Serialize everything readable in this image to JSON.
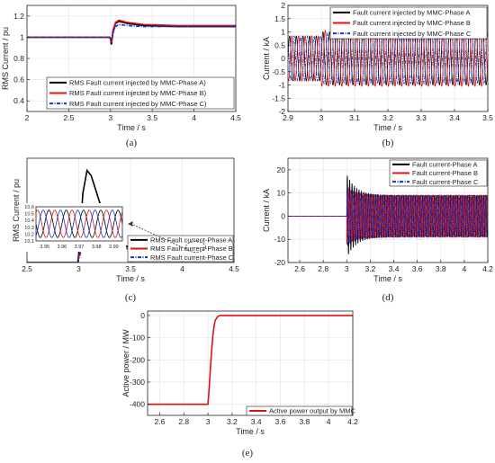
{
  "chart_data": [
    {
      "id": "a",
      "type": "line",
      "caption": "(a)",
      "xlabel": "Time / s",
      "ylabel": "RMS Current / pu",
      "xlim": [
        2,
        4.5
      ],
      "ylim": [
        0.3,
        1.3
      ],
      "xticks": [
        2,
        2.5,
        3,
        3.5,
        4,
        4.5
      ],
      "yticks": [
        0.4,
        0.6,
        0.8,
        1,
        1.2
      ],
      "grid": true,
      "legend_position": "bottom-right",
      "series": [
        {
          "name": "RMS Fault current injected by MMC-Phase A)",
          "color": "#000000",
          "style": "solid",
          "points": [
            [
              2,
              1.0
            ],
            [
              2.99,
              1.0
            ],
            [
              3.0,
              0.98
            ],
            [
              3.01,
              0.93
            ],
            [
              3.03,
              1.05
            ],
            [
              3.06,
              1.13
            ],
            [
              3.1,
              1.15
            ],
            [
              3.2,
              1.13
            ],
            [
              3.4,
              1.11
            ],
            [
              3.8,
              1.1
            ],
            [
              4.5,
              1.1
            ]
          ]
        },
        {
          "name": "RMS Fault current injected by MMC-Phase B)",
          "color": "#e01010",
          "style": "solid",
          "points": [
            [
              2,
              1.0
            ],
            [
              2.99,
              1.0
            ],
            [
              3.0,
              0.99
            ],
            [
              3.01,
              0.95
            ],
            [
              3.03,
              1.07
            ],
            [
              3.06,
              1.14
            ],
            [
              3.1,
              1.16
            ],
            [
              3.2,
              1.14
            ],
            [
              3.4,
              1.12
            ],
            [
              3.8,
              1.11
            ],
            [
              4.5,
              1.11
            ]
          ]
        },
        {
          "name": "RMS Fault current injected by MMC-Phase C)",
          "color": "#1030d0",
          "style": "dashdot",
          "points": [
            [
              2,
              1.0
            ],
            [
              2.99,
              1.0
            ],
            [
              3.0,
              1.0
            ],
            [
              3.01,
              0.97
            ],
            [
              3.03,
              1.04
            ],
            [
              3.06,
              1.1
            ],
            [
              3.1,
              1.12
            ],
            [
              3.2,
              1.11
            ],
            [
              3.4,
              1.1
            ],
            [
              3.8,
              1.1
            ],
            [
              4.5,
              1.1
            ]
          ]
        }
      ]
    },
    {
      "id": "b",
      "type": "line",
      "caption": "(b)",
      "xlabel": "Time / s",
      "ylabel": "Current / kA",
      "xlim": [
        2.9,
        3.5
      ],
      "ylim": [
        -2,
        2
      ],
      "xticks": [
        2.9,
        3,
        3.1,
        3.2,
        3.3,
        3.4,
        3.5
      ],
      "yticks": [
        -2,
        -1.5,
        -1,
        -0.5,
        0,
        0.5,
        1,
        1.5,
        2
      ],
      "grid": true,
      "legend_position": "top-right",
      "frequency_hz": 50,
      "fault_time": 3.0,
      "series": [
        {
          "name": "Fault current injected by MMC-Phase A",
          "color": "#000000",
          "style": "solid",
          "pre_fault_amplitude": 0.85,
          "post_fault_amplitude": 1.0,
          "phase_deg": 0
        },
        {
          "name": "Fault current injected by MMC-Phase B",
          "color": "#e01010",
          "style": "solid",
          "pre_fault_amplitude": 0.85,
          "post_fault_amplitude": 1.05,
          "phase_deg": -120
        },
        {
          "name": "Fault current injected by MMC-Phase C",
          "color": "#1030d0",
          "style": "dashdot",
          "pre_fault_amplitude": 0.85,
          "post_fault_amplitude": 0.95,
          "phase_deg": 120
        }
      ]
    },
    {
      "id": "c",
      "type": "line",
      "caption": "(c)",
      "xlabel": "Time / s",
      "ylabel": "RMS Current / pu",
      "xlim": [
        2.5,
        4.5
      ],
      "ylim": [
        10,
        16
      ],
      "xticks": [
        2.5,
        3,
        3.5,
        4,
        4.5
      ],
      "xtick_labels": [
        "2.5",
        "3",
        "3.5",
        "4",
        "4.5"
      ],
      "yticks": [],
      "grid": true,
      "legend_position": "bottom-right",
      "series": [
        {
          "name": "RMS Fault current-Phase A",
          "color": "#000000",
          "style": "solid",
          "points": [
            [
              2.5,
              10.0
            ],
            [
              2.99,
              10.0
            ],
            [
              3.0,
              10.5
            ],
            [
              3.04,
              14.0
            ],
            [
              3.08,
              15.3
            ],
            [
              3.12,
              15.0
            ],
            [
              3.2,
              13.5
            ],
            [
              3.3,
              12.0
            ],
            [
              3.4,
              11.1
            ],
            [
              3.55,
              10.7
            ],
            [
              3.8,
              10.55
            ],
            [
              4.5,
              10.5
            ]
          ]
        },
        {
          "name": "RMS Fault current-Phase B",
          "color": "#e01010",
          "style": "solid",
          "points": [
            [
              2.5,
              10.0
            ],
            [
              2.99,
              10.0
            ],
            [
              3.0,
              10.3
            ],
            [
              3.05,
              11.6
            ],
            [
              3.1,
              12.0
            ],
            [
              3.2,
              11.6
            ],
            [
              3.35,
              11.0
            ],
            [
              3.6,
              10.6
            ],
            [
              4.5,
              10.5
            ]
          ]
        },
        {
          "name": "RMS Fault current-Phase C",
          "color": "#1030d0",
          "style": "dashdot",
          "points": [
            [
              2.5,
              10.0
            ],
            [
              2.99,
              10.0
            ],
            [
              3.0,
              10.2
            ],
            [
              3.05,
              11.2
            ],
            [
              3.1,
              11.6
            ],
            [
              3.2,
              11.3
            ],
            [
              3.35,
              10.9
            ],
            [
              3.6,
              10.6
            ],
            [
              4.5,
              10.5
            ]
          ]
        }
      ],
      "inset": {
        "xlim": [
          3.945,
          3.995
        ],
        "ylim": [
          10.1,
          10.6
        ],
        "xticks": [
          3.95,
          3.96,
          3.97,
          3.98,
          3.99
        ],
        "yticks": [
          10.1,
          10.2,
          10.3,
          10.4,
          10.5,
          10.6
        ],
        "frequency_hz": 100,
        "center": 10.35,
        "amplitude": 0.2
      }
    },
    {
      "id": "d",
      "type": "line",
      "caption": "(d)",
      "xlabel": "Time / s",
      "ylabel": "Current / kA",
      "xlim": [
        2.5,
        4.2
      ],
      "ylim": [
        -20,
        25
      ],
      "xticks": [
        2.6,
        2.8,
        3,
        3.2,
        3.4,
        3.6,
        3.8,
        4,
        4.2
      ],
      "yticks": [
        -20,
        -10,
        0,
        10,
        20
      ],
      "grid": true,
      "legend_position": "top-right",
      "frequency_hz": 50,
      "fault_time": 3.0,
      "series": [
        {
          "name": "Fault current-Phase A",
          "color": "#000000",
          "style": "solid",
          "peak_amplitude": 18,
          "steady_amplitude": 9,
          "phase_deg": 0
        },
        {
          "name": "Fault current-Phase B",
          "color": "#e01010",
          "style": "solid",
          "peak_amplitude": 12,
          "steady_amplitude": 9,
          "phase_deg": -120
        },
        {
          "name": "Fault current-Phase C",
          "color": "#1030d0",
          "style": "dashdot",
          "peak_amplitude": 13,
          "steady_amplitude": 9,
          "phase_deg": 120
        }
      ]
    },
    {
      "id": "e",
      "type": "line",
      "caption": "(e)",
      "xlabel": "Time / s",
      "ylabel": "Active power / MW",
      "xlim": [
        2.5,
        4.2
      ],
      "ylim": [
        -450,
        20
      ],
      "xticks": [
        2.6,
        2.8,
        3,
        3.2,
        3.4,
        3.6,
        3.8,
        4,
        4.2
      ],
      "yticks": [
        -400,
        -300,
        -200,
        -100,
        0
      ],
      "grid": true,
      "legend_position": "bottom-right",
      "series": [
        {
          "name": "Active power output by MMC",
          "color": "#e01010",
          "style": "solid",
          "points": [
            [
              2.5,
              -400
            ],
            [
              3.0,
              -400
            ],
            [
              3.01,
              -330
            ],
            [
              3.02,
              -240
            ],
            [
              3.03,
              -160
            ],
            [
              3.04,
              -95
            ],
            [
              3.05,
              -50
            ],
            [
              3.06,
              -22
            ],
            [
              3.08,
              -5
            ],
            [
              3.1,
              0
            ],
            [
              4.2,
              0
            ]
          ]
        }
      ]
    }
  ]
}
